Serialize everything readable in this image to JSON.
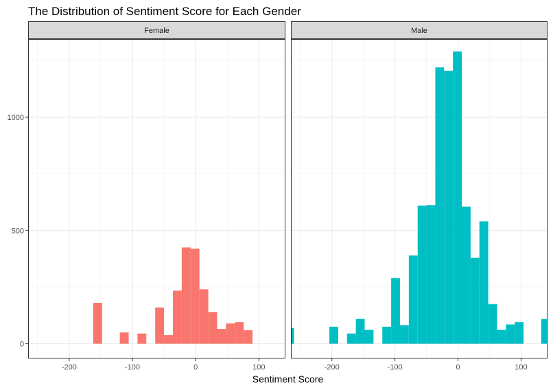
{
  "chart_data": {
    "type": "bar",
    "title": "The Distribution of Sentiment Score for Each Gender",
    "xlabel": "Sentiment Score",
    "ylabel": "",
    "xlim": [
      -265,
      142
    ],
    "ylim": [
      -65,
      1345
    ],
    "x_ticks": [
      "-200",
      "-100",
      "0",
      "100"
    ],
    "y_ticks": [
      "0",
      "500",
      "1000"
    ],
    "grid": true,
    "bin_width": 14,
    "panels": [
      {
        "label": "Female",
        "color": "#F8766D",
        "bins": [
          {
            "x0": -162,
            "x1": -148,
            "y": 180
          },
          {
            "x0": -120,
            "x1": -106,
            "y": 50
          },
          {
            "x0": -92,
            "x1": -78,
            "y": 45
          },
          {
            "x0": -64,
            "x1": -50,
            "y": 160
          },
          {
            "x0": -50,
            "x1": -36,
            "y": 38
          },
          {
            "x0": -36,
            "x1": -22,
            "y": 235
          },
          {
            "x0": -22,
            "x1": -8,
            "y": 425
          },
          {
            "x0": -8,
            "x1": 6,
            "y": 420
          },
          {
            "x0": 6,
            "x1": 20,
            "y": 240
          },
          {
            "x0": 20,
            "x1": 34,
            "y": 140
          },
          {
            "x0": 34,
            "x1": 48,
            "y": 65
          },
          {
            "x0": 48,
            "x1": 62,
            "y": 90
          },
          {
            "x0": 62,
            "x1": 76,
            "y": 95
          },
          {
            "x0": 76,
            "x1": 90,
            "y": 60
          }
        ]
      },
      {
        "label": "Male",
        "color": "#00BFC4",
        "bins": [
          {
            "x0": -274,
            "x1": -260,
            "y": 70
          },
          {
            "x0": -204,
            "x1": -190,
            "y": 75
          },
          {
            "x0": -176,
            "x1": -162,
            "y": 45
          },
          {
            "x0": -162,
            "x1": -148,
            "y": 110
          },
          {
            "x0": -148,
            "x1": -134,
            "y": 62
          },
          {
            "x0": -120,
            "x1": -106,
            "y": 75
          },
          {
            "x0": -106,
            "x1": -92,
            "y": 290
          },
          {
            "x0": -92,
            "x1": -78,
            "y": 82
          },
          {
            "x0": -78,
            "x1": -64,
            "y": 390
          },
          {
            "x0": -64,
            "x1": -50,
            "y": 610
          },
          {
            "x0": -50,
            "x1": -36,
            "y": 612
          },
          {
            "x0": -36,
            "x1": -22,
            "y": 1220
          },
          {
            "x0": -22,
            "x1": -8,
            "y": 1205
          },
          {
            "x0": -8,
            "x1": 6,
            "y": 1290
          },
          {
            "x0": 6,
            "x1": 20,
            "y": 605
          },
          {
            "x0": 20,
            "x1": 34,
            "y": 380
          },
          {
            "x0": 34,
            "x1": 48,
            "y": 540
          },
          {
            "x0": 48,
            "x1": 62,
            "y": 175
          },
          {
            "x0": 62,
            "x1": 76,
            "y": 62
          },
          {
            "x0": 76,
            "x1": 90,
            "y": 85
          },
          {
            "x0": 90,
            "x1": 104,
            "y": 95
          },
          {
            "x0": 132,
            "x1": 146,
            "y": 110
          }
        ]
      }
    ]
  }
}
